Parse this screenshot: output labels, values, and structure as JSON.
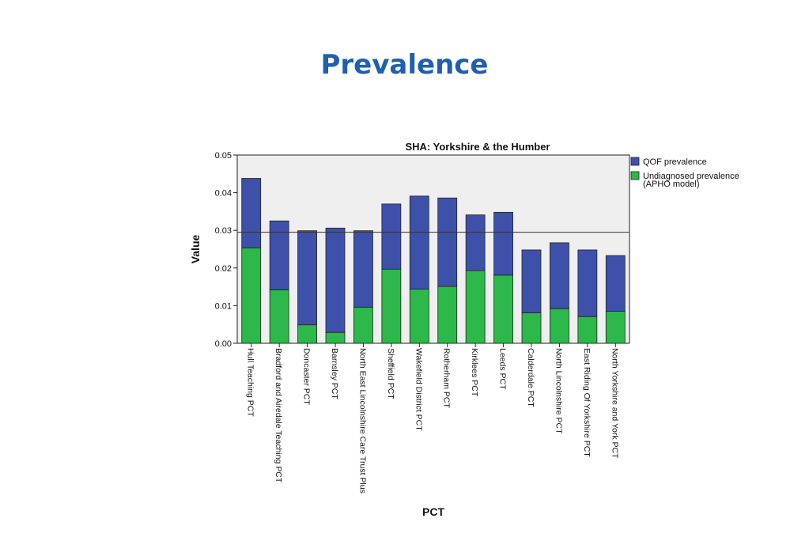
{
  "page": {
    "title": "Prevalence"
  },
  "chart_data": {
    "type": "bar",
    "stacked": true,
    "title": "SHA: Yorkshire & the Humber",
    "xlabel": "PCT",
    "ylabel": "Value",
    "ylim": [
      0,
      0.05
    ],
    "yticks": [
      "0.00",
      "0.01",
      "0.02",
      "0.03",
      "0.04",
      "0.05"
    ],
    "grid": false,
    "legend_position": "right",
    "reference_line": 0.0295,
    "categories": [
      "Hull Teaching PCT",
      "Bradford and Airedale Teaching PCT",
      "Doncaster PCT",
      "Barnsley PCT",
      "North East Lincolnshire Care Trust Plus",
      "Sheffield PCT",
      "Wakefield District PCT",
      "Rotherham PCT",
      "Kirklees PCT",
      "Leeds PCT",
      "Calderdale PCT",
      "North Lincolnshire PCT",
      "East Riding Of Yorkshire PCT",
      "North Yorkshire and York PCT"
    ],
    "series": [
      {
        "name": "QOF prevalence",
        "color": "#3d51ab",
        "values": [
          0.0185,
          0.0183,
          0.025,
          0.0277,
          0.0203,
          0.0173,
          0.0247,
          0.0235,
          0.0148,
          0.0167,
          0.0167,
          0.0175,
          0.0177,
          0.0148
        ]
      },
      {
        "name": "Undiagnosed prevalence\n(APHO model)",
        "color": "#2db84a",
        "values": [
          0.0253,
          0.0142,
          0.0049,
          0.0029,
          0.0096,
          0.0197,
          0.0144,
          0.0151,
          0.0193,
          0.0181,
          0.0081,
          0.0092,
          0.0071,
          0.0085
        ]
      }
    ]
  }
}
